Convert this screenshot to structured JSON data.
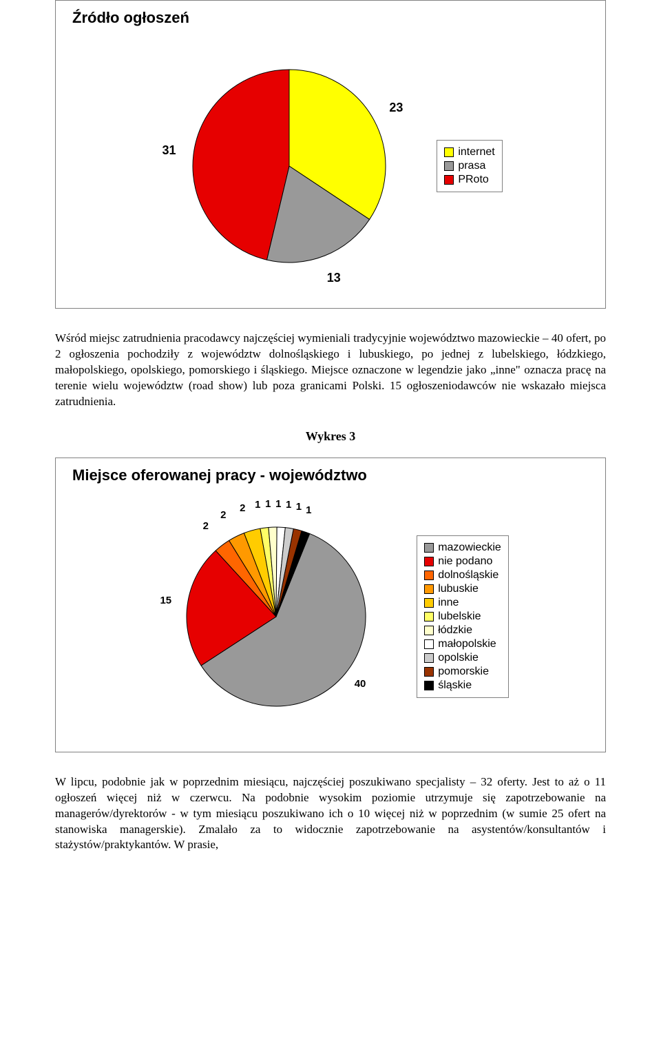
{
  "chart1": {
    "type": "pie",
    "title": "Źródło ogłoszeń",
    "title_fontsize": 22,
    "background_color": "#ffffff",
    "border_color": "#808080",
    "slices": [
      {
        "label": "23",
        "value": 23,
        "color": "#ffff00",
        "legend": "internet"
      },
      {
        "label": "13",
        "value": 13,
        "color": "#999999",
        "legend": "prasa"
      },
      {
        "label": "31",
        "value": 31,
        "color": "#e60000",
        "legend": "PRoto"
      }
    ],
    "label_fontsize": 18,
    "label_font": "Arial",
    "legend_fontsize": 16
  },
  "paragraph1": "Wśród miejsc zatrudnienia pracodawcy najczęściej wymieniali tradycyjnie województwo mazowieckie – 40 ofert, po 2 ogłoszenia pochodziły z województw dolnośląskiego i lubuskiego, po jednej z lubelskiego, łódzkiego, małopolskiego, opolskiego, pomorskiego i śląskiego. Miejsce oznaczone w legendzie jako „inne\" oznacza pracę na terenie wielu województw (road show) lub poza granicami Polski. 15 ogłoszeniodawców nie wskazało miejsca zatrudnienia.",
  "heading2": "Wykres 3",
  "chart2": {
    "type": "pie",
    "title": "Miejsce oferowanej pracy - województwo",
    "title_fontsize": 22,
    "background_color": "#ffffff",
    "border_color": "#808080",
    "slices": [
      {
        "label": "40",
        "value": 40,
        "color": "#999999",
        "legend": "mazowieckie"
      },
      {
        "label": "15",
        "value": 15,
        "color": "#e60000",
        "legend": "nie podano"
      },
      {
        "label": "2",
        "value": 2,
        "color": "#ff6600",
        "legend": "dolnośląskie"
      },
      {
        "label": "2",
        "value": 2,
        "color": "#ff9900",
        "legend": "lubuskie"
      },
      {
        "label": "2",
        "value": 2,
        "color": "#ffcc00",
        "legend": "inne"
      },
      {
        "label": "1",
        "value": 1,
        "color": "#ffff66",
        "legend": "lubelskie"
      },
      {
        "label": "1",
        "value": 1,
        "color": "#ffffcc",
        "legend": "łódzkie"
      },
      {
        "label": "1",
        "value": 1,
        "color": "#ffffff",
        "legend": "małopolskie"
      },
      {
        "label": "1",
        "value": 1,
        "color": "#cccccc",
        "legend": "opolskie"
      },
      {
        "label": "1",
        "value": 1,
        "color": "#993300",
        "legend": "pomorskie"
      },
      {
        "label": "1",
        "value": 1,
        "color": "#000000",
        "legend": "śląskie"
      }
    ],
    "label_fontsize": 16,
    "label_font": "Arial",
    "legend_fontsize": 16
  },
  "paragraph2": "W lipcu, podobnie jak w poprzednim miesiącu, najczęściej poszukiwano specjalisty – 32 oferty. Jest to aż o 11 ogłoszeń więcej niż w czerwcu. Na podobnie wysokim poziomie utrzymuje się zapotrzebowanie na managerów/dyrektorów - w tym miesiącu poszukiwano ich o 10 więcej niż w poprzednim (w sumie 25 ofert na stanowiska managerskie). Zmalało za to widocznie zapotrzebowanie na asystentów/konsultantów i stażystów/praktykantów. W prasie,"
}
